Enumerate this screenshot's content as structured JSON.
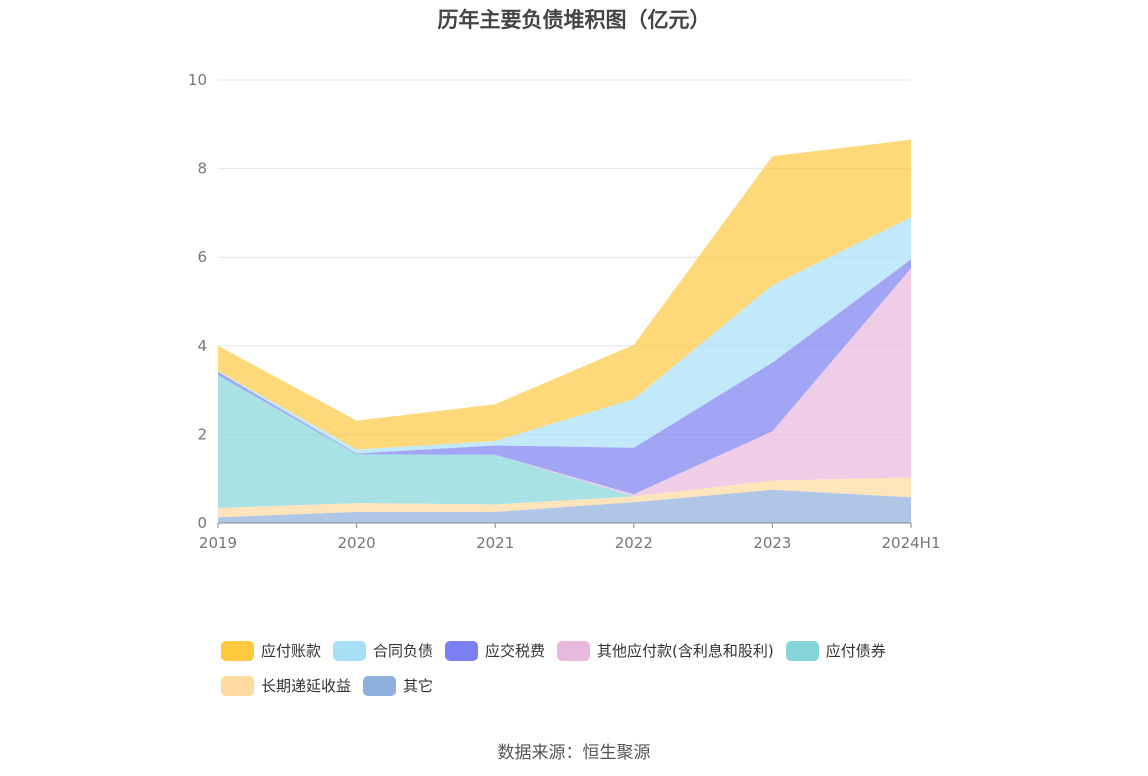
{
  "title": "历年主要负债堆积图（亿元）",
  "source": "数据来源：恒生聚源",
  "chart_data": {
    "type": "area",
    "stacked": true,
    "title": "历年主要负债堆积图（亿元）",
    "xlabel": "",
    "ylabel": "",
    "categories": [
      "2019",
      "2020",
      "2021",
      "2022",
      "2023",
      "2024H1"
    ],
    "ylim": [
      0,
      10
    ],
    "yticks": [
      0,
      2,
      4,
      6,
      8,
      10
    ],
    "grid": true,
    "legend_position": "bottom",
    "series": [
      {
        "name": "其它",
        "color": "#8eaedb",
        "values": [
          0.13,
          0.25,
          0.25,
          0.47,
          0.75,
          0.58
        ]
      },
      {
        "name": "长期递延收益",
        "color": "#ffd9a0",
        "values": [
          0.21,
          0.2,
          0.17,
          0.13,
          0.21,
          0.45
        ]
      },
      {
        "name": "应付债券",
        "color": "#85d5d8",
        "values": [
          3.0,
          1.1,
          1.12,
          0.0,
          0.0,
          0.0
        ]
      },
      {
        "name": "其他应付款(含利息和股利)",
        "color": "#e9b8dc",
        "values": [
          0.0,
          0.0,
          0.0,
          0.05,
          1.11,
          4.72
        ]
      },
      {
        "name": "应交税费",
        "color": "#7b7ff2",
        "values": [
          0.07,
          0.02,
          0.21,
          1.05,
          1.55,
          0.2
        ]
      },
      {
        "name": "合同负债",
        "color": "#a8dff8",
        "values": [
          0.02,
          0.09,
          0.1,
          1.1,
          1.75,
          0.95
        ]
      },
      {
        "name": "应付账款",
        "color": "#ffc940",
        "values": [
          0.57,
          0.65,
          0.83,
          1.22,
          2.91,
          1.75
        ]
      }
    ]
  },
  "legend_rows": [
    [
      "应付账款",
      "合同负债",
      "应交税费",
      "其他应付款(含利息和股利)",
      "应付债券"
    ],
    [
      "长期递延收益",
      "其它"
    ]
  ]
}
